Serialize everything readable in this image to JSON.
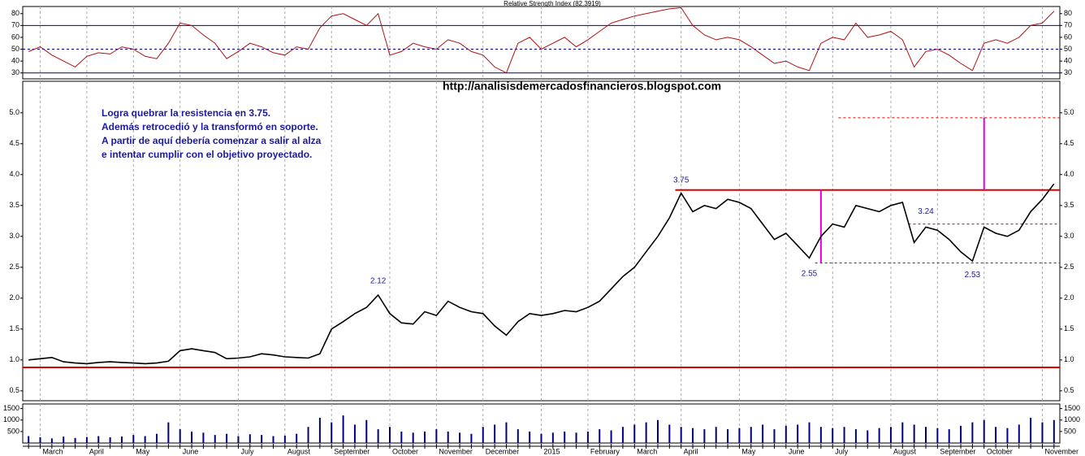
{
  "chart_data": [
    {
      "type": "line",
      "title": "Relative Strength Index (82.3919)",
      "color": "#b01010",
      "values": [
        48,
        52,
        45,
        40,
        35,
        44,
        47,
        46,
        52,
        50,
        44,
        42,
        55,
        72,
        70,
        62,
        55,
        42,
        48,
        55,
        52,
        47,
        45,
        52,
        50,
        68,
        78,
        80,
        75,
        70,
        80,
        45,
        48,
        55,
        52,
        50,
        58,
        55,
        48,
        45,
        35,
        30,
        55,
        60,
        50,
        55,
        60,
        52,
        58,
        65,
        72,
        75,
        78,
        80,
        82,
        84,
        85,
        70,
        62,
        58,
        60,
        58,
        52,
        45,
        38,
        40,
        35,
        32,
        55,
        60,
        58,
        72,
        60,
        62,
        65,
        58,
        35,
        48,
        50,
        45,
        38,
        32,
        55,
        58,
        55,
        60,
        70,
        72,
        82
      ],
      "ylim": [
        25,
        86
      ],
      "yticks": [
        30,
        40,
        50,
        60,
        70,
        80
      ],
      "hlines": [
        {
          "value": 70,
          "color": "#00008b",
          "style": "solid",
          "start": 0
        },
        {
          "value": 50,
          "color": "#00008b",
          "style": "dashed",
          "start": 0
        },
        {
          "value": 30,
          "color": "#00008b",
          "style": "solid",
          "start": 0
        }
      ]
    },
    {
      "type": "line",
      "subtitle": "http://analisisdemercadosfinancieros.blogspot.com",
      "color": "#000000",
      "notes": [
        "Logra quebrar la resistencia en 3.75.",
        "Además retrocedió y la transformó en soporte.",
        "A partir de aquí debería comenzar a salir al alza",
        "e intentar cumplir con el objetivo proyectado."
      ],
      "values": [
        1.0,
        1.02,
        1.04,
        0.97,
        0.95,
        0.94,
        0.96,
        0.97,
        0.96,
        0.95,
        0.94,
        0.95,
        0.98,
        1.15,
        1.18,
        1.15,
        1.12,
        1.02,
        1.03,
        1.05,
        1.1,
        1.08,
        1.05,
        1.04,
        1.03,
        1.1,
        1.5,
        1.62,
        1.75,
        1.85,
        2.05,
        1.75,
        1.6,
        1.58,
        1.78,
        1.72,
        1.95,
        1.85,
        1.78,
        1.75,
        1.55,
        1.4,
        1.62,
        1.75,
        1.72,
        1.75,
        1.8,
        1.78,
        1.85,
        1.95,
        2.15,
        2.35,
        2.5,
        2.75,
        3.0,
        3.3,
        3.7,
        3.4,
        3.5,
        3.45,
        3.6,
        3.55,
        3.45,
        3.2,
        2.95,
        3.05,
        2.85,
        2.65,
        3.0,
        3.2,
        3.15,
        3.5,
        3.45,
        3.4,
        3.5,
        3.55,
        2.9,
        3.15,
        3.1,
        2.95,
        2.75,
        2.6,
        3.15,
        3.05,
        3.0,
        3.1,
        3.4,
        3.6,
        3.85
      ],
      "ylim": [
        0.34,
        5.51
      ],
      "yticks": [
        0.5,
        {
          "value": 1,
          "label": "1.0"
        },
        1.5,
        {
          "value": 2,
          "label": "2.0"
        },
        2.5,
        {
          "value": 3,
          "label": "3.0"
        },
        3.5,
        {
          "value": 4,
          "label": "4.0"
        },
        4.5,
        {
          "value": 5,
          "label": "5.0"
        }
      ],
      "hlines": [
        {
          "value": 3.75,
          "color": "#e00000",
          "style": "solid",
          "start": 56
        },
        {
          "value": 0.88,
          "color": "#e00000",
          "style": "solid",
          "start": 0
        },
        {
          "value": 4.92,
          "color": "#e00000",
          "style": "dashed",
          "start": 70
        },
        {
          "value": 3.2,
          "color": "#e00000",
          "style": "dashed",
          "start": 76
        },
        {
          "value": 2.57,
          "color": "#e00000",
          "style": "dashed",
          "start": 68
        }
      ],
      "vlines": [
        {
          "index": 68,
          "from": 2.57,
          "to": 3.75,
          "color": "#e000e0"
        },
        {
          "index": 82,
          "from": 3.75,
          "to": 4.92,
          "color": "#e000e0"
        }
      ],
      "annotations": [
        {
          "index": 30,
          "value": 2.12,
          "side": "above"
        },
        {
          "index": 56,
          "value": 3.75,
          "side": "above"
        },
        {
          "index": 67,
          "value": 2.55,
          "side": "below"
        },
        {
          "index": 77,
          "value": 3.24,
          "side": "above"
        },
        {
          "index": 81,
          "value": 2.53,
          "side": "below"
        }
      ]
    },
    {
      "type": "bar",
      "color": "#000080",
      "categories": [
        null,
        "March",
        null,
        null,
        null,
        "April",
        null,
        null,
        null,
        "May",
        null,
        null,
        null,
        "June",
        null,
        null,
        null,
        null,
        "July",
        null,
        null,
        null,
        "August",
        null,
        null,
        null,
        "September",
        null,
        null,
        null,
        null,
        "October",
        null,
        null,
        null,
        "November",
        null,
        null,
        null,
        "December",
        null,
        null,
        null,
        null,
        "2015",
        null,
        null,
        null,
        "February",
        null,
        null,
        null,
        "March",
        null,
        null,
        null,
        "April",
        null,
        null,
        null,
        null,
        "May",
        null,
        null,
        null,
        "June",
        null,
        null,
        null,
        "July",
        null,
        null,
        null,
        null,
        "August",
        null,
        null,
        null,
        "September",
        null,
        null,
        null,
        "October",
        null,
        null,
        null,
        null,
        "November",
        null
      ],
      "values": [
        300,
        250,
        200,
        280,
        220,
        260,
        300,
        250,
        280,
        350,
        300,
        400,
        900,
        600,
        500,
        450,
        350,
        400,
        300,
        380,
        350,
        300,
        320,
        400,
        700,
        1100,
        900,
        1200,
        800,
        1000,
        600,
        700,
        500,
        450,
        500,
        600,
        500,
        450,
        400,
        700,
        800,
        900,
        600,
        500,
        400,
        450,
        500,
        450,
        500,
        600,
        550,
        700,
        800,
        900,
        1000,
        800,
        700,
        650,
        600,
        700,
        600,
        650,
        700,
        800,
        600,
        750,
        800,
        900,
        700,
        650,
        700,
        600,
        550,
        650,
        700,
        900,
        800,
        700,
        650,
        600,
        750,
        900,
        1000,
        700,
        650,
        800,
        1100,
        900,
        1000
      ],
      "ylim": [
        0,
        1700
      ],
      "yticks": [
        500,
        1000,
        1500
      ]
    }
  ]
}
